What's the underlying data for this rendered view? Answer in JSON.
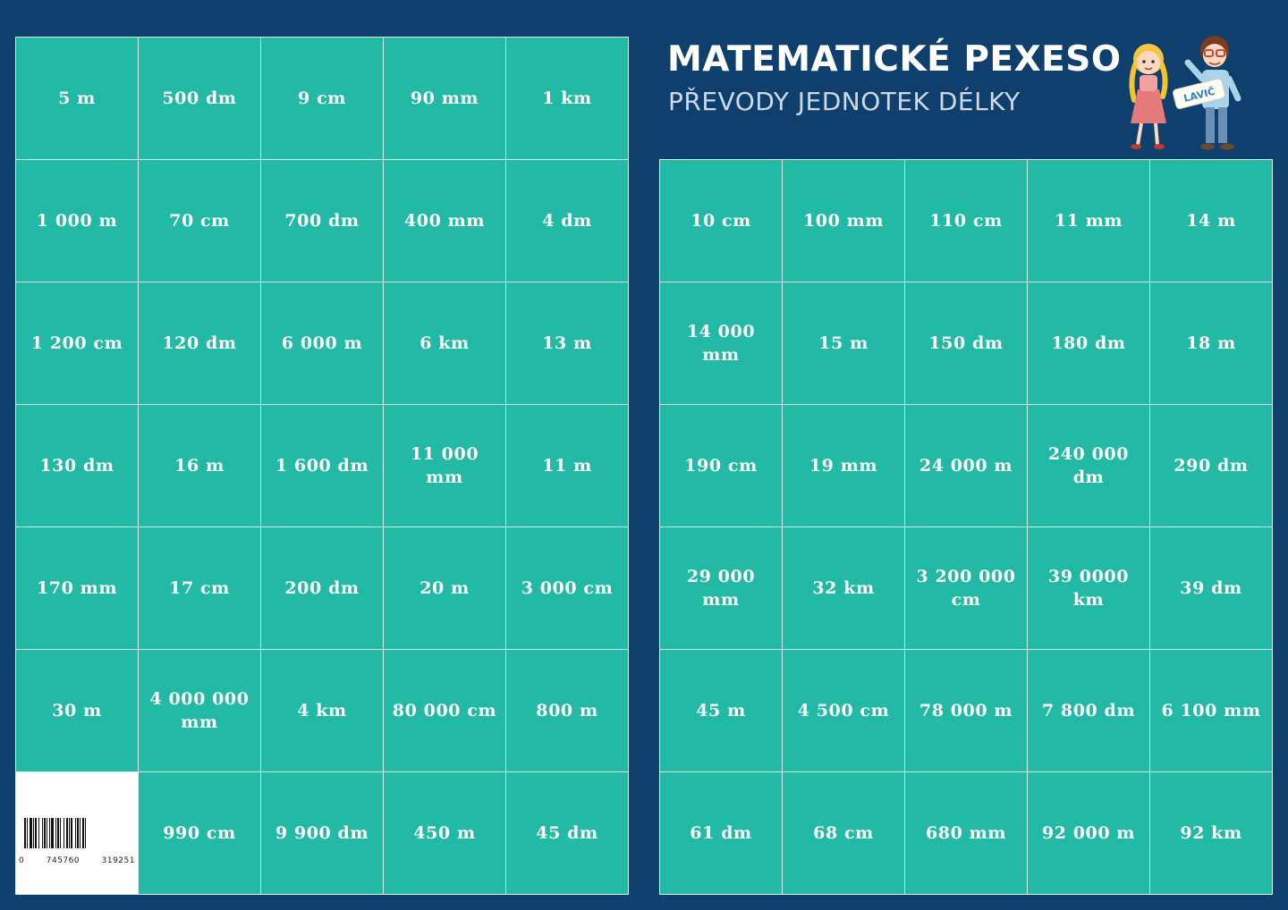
{
  "header": {
    "title": "MATEMATICKÉ PEXESO",
    "subtitle": "PŘEVODY JEDNOTEK DÉLKY",
    "mascot_label": "LAVIČ"
  },
  "left_cards": [
    "5 m",
    "500 dm",
    "9 cm",
    "90 mm",
    "1 km",
    "1 000 m",
    "70 cm",
    "700 dm",
    "400 mm",
    "4 dm",
    "1 200 cm",
    "120 dm",
    "6 000 m",
    "6 km",
    "13 m",
    "130 dm",
    "16 m",
    "1 600 dm",
    "11 000 mm",
    "11 m",
    "170 mm",
    "17 cm",
    "200 dm",
    "20 m",
    "3 000 cm",
    "30 m",
    "4 000 000 mm",
    "4 km",
    "80 000 cm",
    "800 m",
    "",
    "990 cm",
    "9 900 dm",
    "450 m",
    "45 dm"
  ],
  "right_cards": [
    "10 cm",
    "100 mm",
    "110 cm",
    "11 mm",
    "14 m",
    "14 000 mm",
    "15 m",
    "150 dm",
    "180 dm",
    "18 m",
    "190 cm",
    "19 mm",
    "24 000 m",
    "240 000 dm",
    "290 dm",
    "29 000 mm",
    "32 km",
    "3 200 000 cm",
    "39 0000 km",
    "39 dm",
    "45 m",
    "4 500 cm",
    "78 000 m",
    "7 800 dm",
    "6 100 mm",
    "61 dm",
    "68 cm",
    "680 mm",
    "92 000 m",
    "92 km"
  ],
  "barcode": {
    "digit_1": "0",
    "digit_2": "745760",
    "digit_3": "319251"
  },
  "colors": {
    "background": "#0e3f6d",
    "card": "#22b9a5",
    "card_border": "#d8f3ee",
    "card_text": "#ffffff"
  }
}
